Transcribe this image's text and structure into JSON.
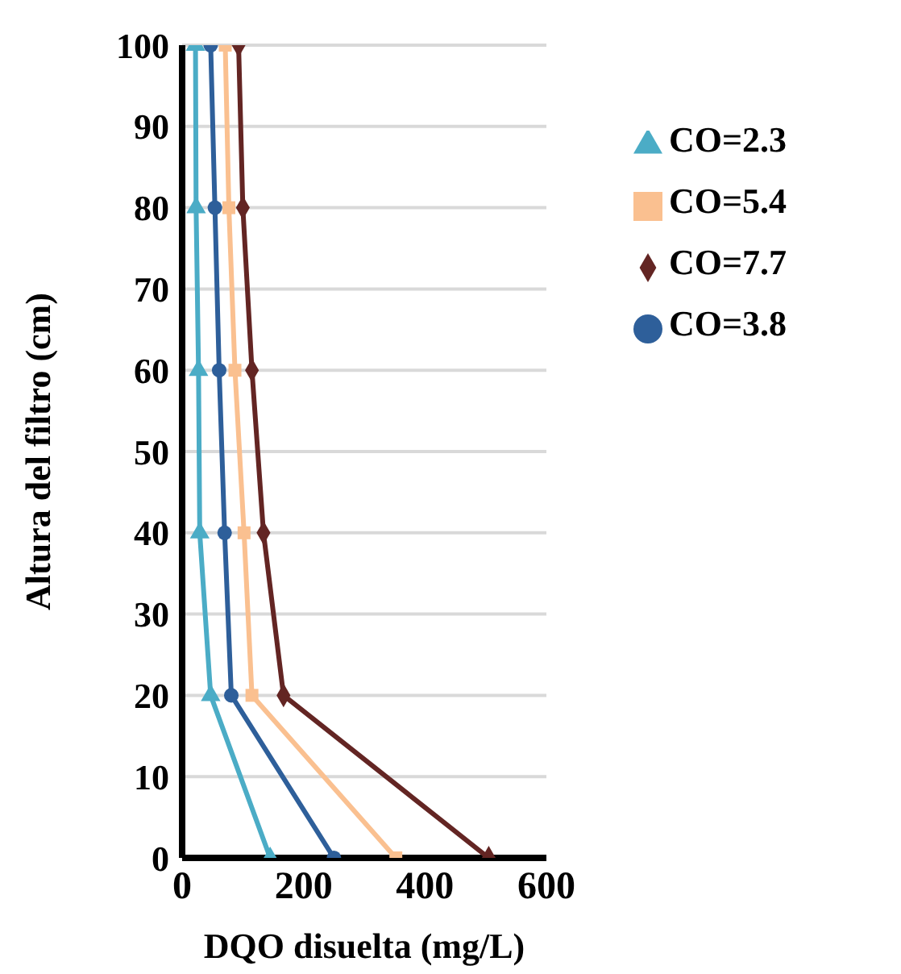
{
  "chart_data": {
    "type": "scatter",
    "xlabel": "DQO disuelta (mg/L)",
    "ylabel": "Altura del filtro (cm)",
    "xlim": [
      0,
      600
    ],
    "xticks": [
      0,
      200,
      400,
      600
    ],
    "ylim": [
      0,
      100
    ],
    "yticks": [
      0,
      10,
      20,
      30,
      40,
      50,
      60,
      70,
      80,
      90,
      100
    ],
    "grid": "y",
    "legend": "top right",
    "line_style": "solid",
    "series": [
      {
        "name": "CO=2.3",
        "type": "line",
        "marker": "triangle",
        "color": "#4bacc6",
        "x": [
          145,
          47,
          29,
          27,
          23,
          22
        ],
        "values": [
          0,
          20,
          40,
          60,
          80,
          100
        ]
      },
      {
        "name": "CO=5.4",
        "type": "line",
        "marker": "square",
        "color": "#fac090",
        "x": [
          352,
          115,
          102,
          87,
          77,
          71
        ],
        "values": [
          0,
          20,
          40,
          60,
          80,
          100
        ]
      },
      {
        "name": "CO=7.7",
        "type": "line",
        "marker": "diamond",
        "color": "#632523",
        "x": [
          505,
          167,
          134,
          115,
          100,
          93
        ],
        "values": [
          0,
          20,
          40,
          60,
          80,
          100
        ]
      },
      {
        "name": "CO=3.8",
        "type": "line",
        "marker": "circle",
        "color": "#2e5f9a",
        "x": [
          250,
          81,
          70,
          61,
          54,
          47
        ],
        "values": [
          0,
          20,
          40,
          60,
          80,
          100
        ]
      }
    ]
  }
}
